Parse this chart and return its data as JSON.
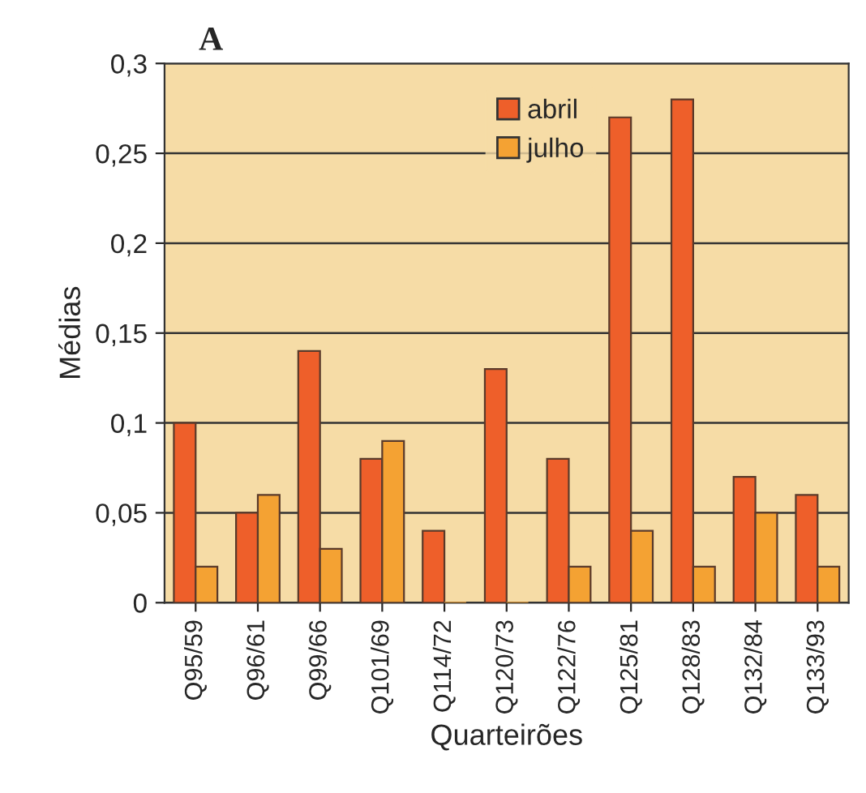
{
  "chart_data": {
    "type": "bar",
    "title": "A",
    "xlabel": "Quarteirões",
    "ylabel": "Médias",
    "categories": [
      "Q95/59",
      "Q96/61",
      "Q99/66",
      "Q101/69",
      "Q114/72",
      "Q120/73",
      "Q122/76",
      "Q125/81",
      "Q128/83",
      "Q132/84",
      "Q133/93"
    ],
    "series": [
      {
        "name": "abril",
        "color": "#ee5f2a",
        "values": [
          0.1,
          0.05,
          0.14,
          0.08,
          0.04,
          0.13,
          0.08,
          0.27,
          0.28,
          0.07,
          0.06
        ]
      },
      {
        "name": "julho",
        "color": "#f4a233",
        "values": [
          0.02,
          0.06,
          0.03,
          0.09,
          0,
          0,
          0.02,
          0.04,
          0.02,
          0.05,
          0.02
        ]
      }
    ],
    "ylim": [
      0,
      0.3
    ],
    "yticks": [
      {
        "value": 0,
        "label": "0"
      },
      {
        "value": 0.05,
        "label": "0,05"
      },
      {
        "value": 0.1,
        "label": "0,1"
      },
      {
        "value": 0.15,
        "label": "0,15"
      },
      {
        "value": 0.2,
        "label": "0,2"
      },
      {
        "value": 0.25,
        "label": "0,25"
      },
      {
        "value": 0.3,
        "label": "0,3"
      }
    ],
    "grid": "y",
    "legend": "top"
  }
}
